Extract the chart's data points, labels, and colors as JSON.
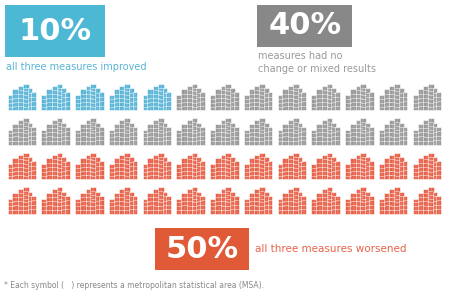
{
  "background_color": "#ffffff",
  "blue_color": "#5ab4d6",
  "gray_color": "#9a9a9a",
  "red_color": "#e8624a",
  "badge_blue": "#4db8d4",
  "badge_gray": "#888888",
  "badge_red": "#e05a38",
  "n_blue": 5,
  "n_gray": 21,
  "n_red": 26,
  "n_total": 52,
  "cols": 13,
  "pct_blue": "10%",
  "pct_gray": "40%",
  "pct_red": "50%",
  "label_blue": "all three measures improved",
  "label_gray_line1": "measures had no",
  "label_gray_line2": "change or mixed results",
  "label_red": "all three measures worsened",
  "footer": "* Each symbol (   ) represents a metropolitan statistical area (MSA)."
}
